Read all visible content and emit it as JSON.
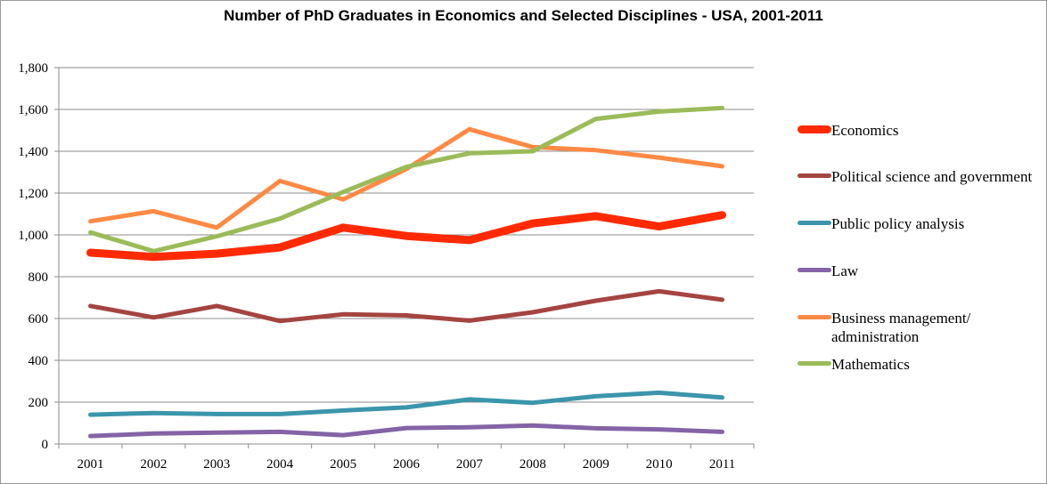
{
  "chart_data": {
    "type": "line",
    "title": "Number of PhD Graduates in Economics and Selected Disciplines - USA, 2001-2011",
    "xlabel": "",
    "ylabel": "",
    "ylim": [
      0,
      1800
    ],
    "yticks": [
      "0",
      "200",
      "400",
      "600",
      "800",
      "1,000",
      "1,200",
      "1,400",
      "1,600",
      "1,800"
    ],
    "x": [
      "2001",
      "2002",
      "2003",
      "2004",
      "2005",
      "2006",
      "2007",
      "2008",
      "2009",
      "2010",
      "2011"
    ],
    "grid": true,
    "legend_position": "right",
    "series": [
      {
        "name": "Economics",
        "color": "#ff2a00",
        "weight": "thick",
        "values": [
          915,
          895,
          910,
          940,
          1035,
          995,
          975,
          1055,
          1090,
          1040,
          1095
        ]
      },
      {
        "name": "Political science and government",
        "color": "#a44441",
        "weight": "normal",
        "values": [
          660,
          605,
          660,
          588,
          620,
          615,
          590,
          630,
          685,
          730,
          690
        ]
      },
      {
        "name": "Public policy analysis",
        "color": "#3b95ab",
        "weight": "normal",
        "values": [
          140,
          148,
          143,
          143,
          160,
          175,
          213,
          197,
          228,
          245,
          222
        ]
      },
      {
        "name": "Law",
        "color": "#8463a6",
        "weight": "normal",
        "values": [
          38,
          50,
          54,
          58,
          42,
          76,
          80,
          88,
          75,
          70,
          58
        ]
      },
      {
        "name": "Business management/ administration",
        "color": "#ff8a45",
        "weight": "normal",
        "values": [
          1065,
          1113,
          1035,
          1258,
          1170,
          1315,
          1505,
          1420,
          1405,
          1370,
          1328
        ]
      },
      {
        "name": "Mathematics",
        "color": "#9bbb59",
        "weight": "normal",
        "values": [
          1012,
          922,
          993,
          1078,
          1205,
          1325,
          1390,
          1400,
          1555,
          1590,
          1607
        ]
      }
    ]
  }
}
